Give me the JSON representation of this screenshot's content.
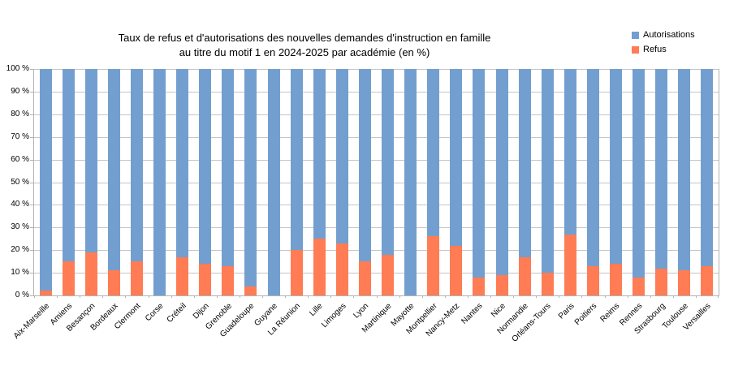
{
  "chart_data": {
    "type": "bar",
    "stacked": true,
    "title": "Taux de refus et d'autorisations des nouvelles demandes d'instruction en famille au titre du motif 1 en 2024-2025 par académie (en %)",
    "title_lines": [
      "Taux de refus et d'autorisations des nouvelles demandes d'instruction en famille",
      "au titre du motif 1 en 2024-2025 par académie (en %)"
    ],
    "categories": [
      "Aix-Marseille",
      "Amiens",
      "Besançon",
      "Bordeaux",
      "Clermont",
      "Corse",
      "Créteil",
      "Dijon",
      "Grenoble",
      "Guadeloupe",
      "Guyane",
      "La Réunion",
      "Lille",
      "Limoges",
      "Lyon",
      "Martinique",
      "Mayotte",
      "Montpellier",
      "Nancy-Metz",
      "Nantes",
      "Nice",
      "Normandie",
      "Orléans-Tours",
      "Paris",
      "Poitiers",
      "Reims",
      "Rennes",
      "Strasbourg",
      "Toulouse",
      "Versailles"
    ],
    "series": [
      {
        "name": "Autorisations",
        "color": "#729FCF",
        "values": [
          98,
          85,
          81,
          89,
          85,
          100,
          83,
          86,
          87,
          96,
          100,
          80,
          75,
          77,
          85,
          82,
          100,
          74,
          78,
          92,
          91,
          83,
          90,
          73,
          87,
          86,
          92,
          88,
          89,
          87
        ]
      },
      {
        "name": "Refus",
        "color": "#FF7C55",
        "values": [
          2,
          15,
          19,
          11,
          15,
          0,
          17,
          14,
          13,
          4,
          0,
          20,
          25,
          23,
          15,
          18,
          0,
          26,
          22,
          8,
          9,
          17,
          10,
          27,
          13,
          14,
          8,
          12,
          11,
          13
        ]
      }
    ],
    "yticks": [
      0,
      10,
      20,
      30,
      40,
      50,
      60,
      70,
      80,
      90,
      100
    ],
    "ytick_suffix": " %",
    "ylim": [
      0,
      100
    ],
    "grid": true,
    "legend_position": "top-right",
    "gridline_color": "#c6c6c6",
    "axis_color": "#b3b3b3"
  }
}
